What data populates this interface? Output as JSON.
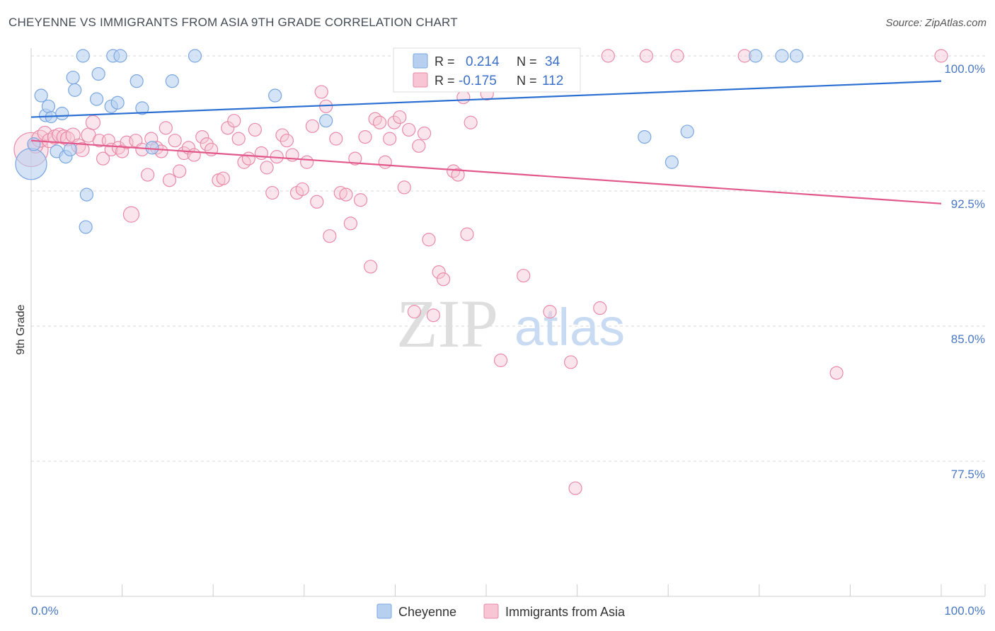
{
  "header": {
    "title": "CHEYENNE VS IMMIGRANTS FROM ASIA 9TH GRADE CORRELATION CHART",
    "source": "Source: ZipAtlas.com"
  },
  "chart_data": {
    "type": "scatter",
    "title": "CHEYENNE VS IMMIGRANTS FROM ASIA 9TH GRADE CORRELATION CHART",
    "xlabel": "",
    "ylabel": "9th Grade",
    "xlim": [
      0,
      100
    ],
    "ylim": [
      70.6,
      100.7
    ],
    "x_tick_labels": [
      "0.0%",
      "100.0%"
    ],
    "y_ticks": [
      100.0,
      92.5,
      85.0,
      77.5
    ],
    "y_tick_labels": [
      "100.0%",
      "92.5%",
      "85.0%",
      "77.5%"
    ],
    "watermark": {
      "zip": "ZIP",
      "atlas": "atlas"
    },
    "legend": {
      "r_label": "R =",
      "n_label": "N =",
      "entries": [
        {
          "name": "Cheyenne",
          "r": "0.214",
          "n": "34"
        },
        {
          "name": "Immigrants from Asia",
          "r": "-0.175",
          "n": "112"
        }
      ]
    },
    "series": [
      {
        "name": "Cheyenne",
        "color": "#7aa7e0",
        "fill": "#b8d0f0",
        "line_color": "#2a6fd1",
        "trend": [
          [
            0,
            96.6
          ],
          [
            100,
            98.6
          ]
        ],
        "points": [
          [
            0.0,
            94.0,
            22
          ],
          [
            0.3,
            95.1,
            9
          ],
          [
            1.1,
            97.8,
            9
          ],
          [
            1.6,
            96.7,
            9
          ],
          [
            1.9,
            97.2,
            9
          ],
          [
            2.2,
            96.6,
            8
          ],
          [
            2.8,
            94.7,
            9
          ],
          [
            3.4,
            96.8,
            9
          ],
          [
            3.8,
            94.4,
            9
          ],
          [
            4.3,
            94.8,
            9
          ],
          [
            4.6,
            98.8,
            9
          ],
          [
            4.8,
            98.1,
            9
          ],
          [
            5.7,
            100.0,
            9
          ],
          [
            6.1,
            92.3,
            9
          ],
          [
            6.0,
            90.5,
            9
          ],
          [
            7.2,
            97.6,
            9
          ],
          [
            7.4,
            99.0,
            9
          ],
          [
            8.8,
            97.2,
            9
          ],
          [
            9.0,
            100.0,
            9
          ],
          [
            9.5,
            97.4,
            9
          ],
          [
            9.8,
            100.0,
            9
          ],
          [
            11.6,
            98.6,
            9
          ],
          [
            12.2,
            97.1,
            9
          ],
          [
            13.3,
            94.9,
            9
          ],
          [
            15.5,
            98.6,
            9
          ],
          [
            18.0,
            100.0,
            9
          ],
          [
            26.8,
            97.8,
            9
          ],
          [
            32.4,
            96.4,
            9
          ],
          [
            67.4,
            95.5,
            9
          ],
          [
            70.4,
            94.1,
            9
          ],
          [
            72.1,
            95.8,
            9
          ],
          [
            79.6,
            100.0,
            9
          ],
          [
            82.5,
            100.0,
            9
          ],
          [
            84.1,
            100.0,
            9
          ]
        ]
      },
      {
        "name": "Immigrants from Asia",
        "color": "#e98aa8",
        "fill": "#f7c5d4",
        "line_color": "#e2588a",
        "trend": [
          [
            0,
            95.3
          ],
          [
            100,
            91.8
          ]
        ],
        "points": [
          [
            0.0,
            94.8,
            24
          ],
          [
            0.5,
            95.0,
            10
          ],
          [
            1.0,
            95.4,
            12
          ],
          [
            1.5,
            95.7,
            10
          ],
          [
            2.0,
            95.3,
            10
          ],
          [
            2.6,
            95.5,
            10
          ],
          [
            3.1,
            95.6,
            10
          ],
          [
            3.6,
            95.5,
            10
          ],
          [
            4.0,
            95.4,
            10
          ],
          [
            4.6,
            95.6,
            10
          ],
          [
            5.2,
            95.0,
            10
          ],
          [
            5.6,
            94.8,
            10
          ],
          [
            6.3,
            95.6,
            10
          ],
          [
            6.8,
            96.3,
            10
          ],
          [
            7.5,
            95.3,
            9
          ],
          [
            7.9,
            94.3,
            9
          ],
          [
            8.5,
            95.3,
            9
          ],
          [
            8.8,
            94.8,
            9
          ],
          [
            9.6,
            94.9,
            9
          ],
          [
            10.0,
            94.7,
            9
          ],
          [
            10.5,
            95.2,
            9
          ],
          [
            11.0,
            91.2,
            11
          ],
          [
            11.5,
            95.3,
            9
          ],
          [
            12.2,
            94.8,
            9
          ],
          [
            12.8,
            93.4,
            9
          ],
          [
            13.2,
            95.4,
            9
          ],
          [
            13.8,
            94.9,
            9
          ],
          [
            14.3,
            94.7,
            9
          ],
          [
            14.8,
            96.0,
            9
          ],
          [
            15.2,
            93.1,
            9
          ],
          [
            15.8,
            95.3,
            9
          ],
          [
            16.3,
            93.6,
            9
          ],
          [
            16.8,
            94.6,
            9
          ],
          [
            17.3,
            94.9,
            9
          ],
          [
            17.9,
            94.5,
            9
          ],
          [
            18.8,
            95.5,
            9
          ],
          [
            19.3,
            95.1,
            9
          ],
          [
            19.8,
            94.8,
            9
          ],
          [
            20.6,
            93.1,
            9
          ],
          [
            21.1,
            93.2,
            9
          ],
          [
            21.6,
            96.0,
            9
          ],
          [
            22.3,
            96.4,
            9
          ],
          [
            22.8,
            95.4,
            9
          ],
          [
            23.4,
            94.1,
            9
          ],
          [
            23.9,
            94.3,
            9
          ],
          [
            24.6,
            95.9,
            9
          ],
          [
            25.3,
            94.6,
            9
          ],
          [
            25.9,
            93.8,
            9
          ],
          [
            26.5,
            92.4,
            9
          ],
          [
            27.0,
            94.4,
            9
          ],
          [
            27.6,
            95.6,
            9
          ],
          [
            28.1,
            95.3,
            9
          ],
          [
            28.7,
            94.5,
            9
          ],
          [
            29.2,
            92.4,
            9
          ],
          [
            29.8,
            92.6,
            9
          ],
          [
            30.3,
            94.1,
            9
          ],
          [
            30.9,
            96.1,
            9
          ],
          [
            31.4,
            91.9,
            9
          ],
          [
            31.9,
            98.0,
            9
          ],
          [
            32.4,
            97.2,
            9
          ],
          [
            32.8,
            90.0,
            9
          ],
          [
            33.5,
            95.4,
            9
          ],
          [
            34.0,
            92.4,
            9
          ],
          [
            34.6,
            92.3,
            9
          ],
          [
            35.1,
            90.7,
            9
          ],
          [
            35.6,
            94.3,
            9
          ],
          [
            36.2,
            92.0,
            9
          ],
          [
            36.7,
            95.5,
            9
          ],
          [
            37.3,
            88.3,
            9
          ],
          [
            37.8,
            96.5,
            9
          ],
          [
            38.3,
            96.3,
            9
          ],
          [
            38.9,
            94.1,
            9
          ],
          [
            39.4,
            95.4,
            9
          ],
          [
            39.9,
            96.3,
            9
          ],
          [
            40.5,
            96.6,
            9
          ],
          [
            41.0,
            92.7,
            9
          ],
          [
            41.5,
            95.9,
            9
          ],
          [
            42.1,
            85.8,
            9
          ],
          [
            42.6,
            95.0,
            9
          ],
          [
            43.2,
            95.7,
            9
          ],
          [
            43.7,
            89.8,
            9
          ],
          [
            44.2,
            85.6,
            9
          ],
          [
            44.8,
            88.0,
            9
          ],
          [
            45.3,
            87.6,
            9
          ],
          [
            45.8,
            99.2,
            9
          ],
          [
            46.4,
            93.6,
            9
          ],
          [
            46.9,
            93.4,
            9
          ],
          [
            47.5,
            97.7,
            9
          ],
          [
            47.9,
            90.1,
            9
          ],
          [
            48.3,
            96.3,
            9
          ],
          [
            50.1,
            97.9,
            9
          ],
          [
            50.7,
            100.0,
            9
          ],
          [
            51.6,
            83.1,
            9
          ],
          [
            53.0,
            100.0,
            9
          ],
          [
            54.1,
            87.8,
            9
          ],
          [
            57.0,
            85.8,
            9
          ],
          [
            59.3,
            83.0,
            9
          ],
          [
            59.8,
            76.0,
            9
          ],
          [
            62.5,
            86.0,
            9
          ],
          [
            63.4,
            100.0,
            9
          ],
          [
            67.6,
            100.0,
            9
          ],
          [
            71.0,
            100.0,
            9
          ],
          [
            78.4,
            100.0,
            9
          ],
          [
            88.5,
            82.4,
            9
          ],
          [
            100.0,
            100.0,
            9
          ]
        ]
      }
    ]
  }
}
